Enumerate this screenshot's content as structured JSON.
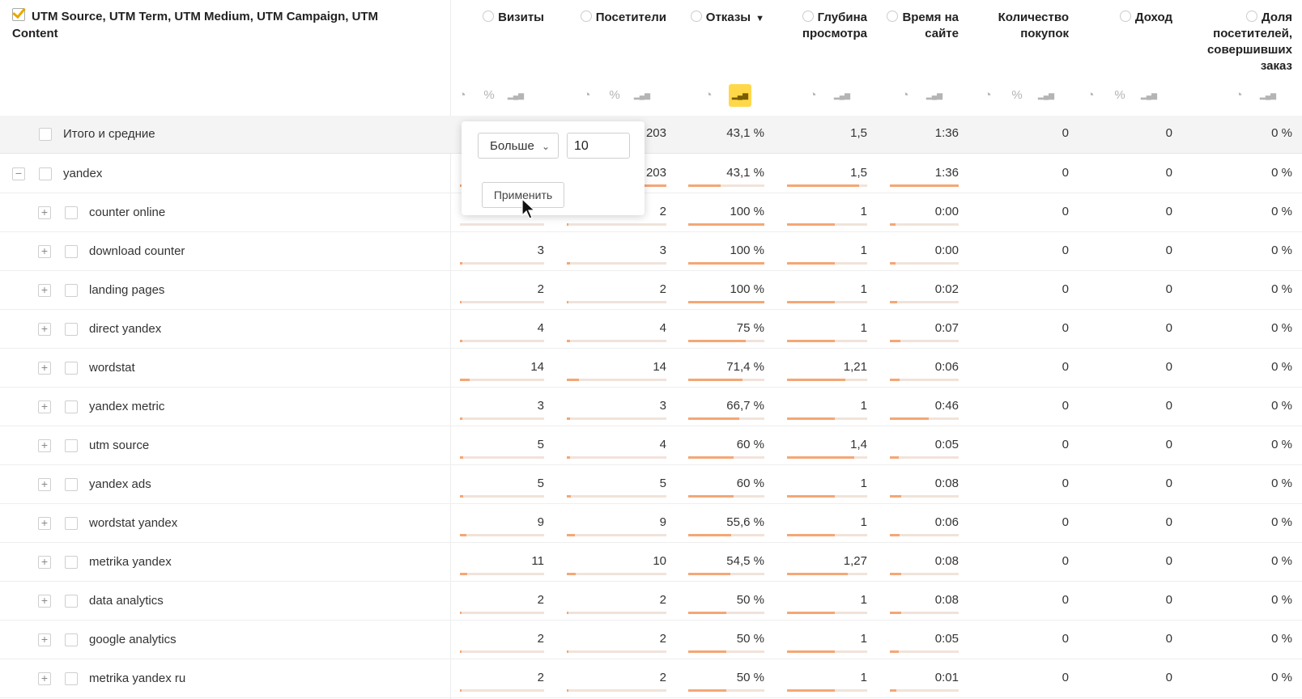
{
  "dimension_header": "UTM Source, UTM Term, UTM Medium, UTM Campaign, UTM Content",
  "columns": [
    {
      "label": "Визиты"
    },
    {
      "label": "Посетители"
    },
    {
      "label": "Отказы",
      "sort": "▼"
    },
    {
      "label": "Глубина просмотра"
    },
    {
      "label": "Время на сайте"
    },
    {
      "label": "Количество покупок"
    },
    {
      "label": "Доход"
    },
    {
      "label": "Доля посетителей, совершивших заказ"
    }
  ],
  "icons": {
    "pie": "pie-chart-icon",
    "percent": "percent-icon",
    "bars": "bar-chart-icon",
    "question": "info-icon"
  },
  "accent_color": "#ffd84a",
  "bar_color": "#f4a775",
  "filter_popup": {
    "operator": "Больше",
    "value": "10",
    "apply_label": "Применить"
  },
  "rows": [
    {
      "label": "Итого и средние",
      "type": "total",
      "visits": "",
      "visitors": "203",
      "bounce": "43,1 %",
      "depth": "1,5",
      "time": "1:36",
      "purchases": "0",
      "revenue": "0",
      "share": "0 %"
    },
    {
      "label": "yandex",
      "type": "group",
      "visits": "",
      "visitors": "203",
      "bounce": "43,1 %",
      "depth": "1,5",
      "time": "1:36",
      "purchases": "0",
      "revenue": "0",
      "share": "0 %"
    },
    {
      "label": "counter online",
      "type": "child",
      "visits": "",
      "visitors": "2",
      "bounce": "100 %",
      "depth": "1",
      "time": "0:00",
      "purchases": "0",
      "revenue": "0",
      "share": "0 %"
    },
    {
      "label": "download counter",
      "type": "child",
      "visits": "3",
      "visitors": "3",
      "bounce": "100 %",
      "depth": "1",
      "time": "0:00",
      "purchases": "0",
      "revenue": "0",
      "share": "0 %"
    },
    {
      "label": "landing pages",
      "type": "child",
      "visits": "2",
      "visitors": "2",
      "bounce": "100 %",
      "depth": "1",
      "time": "0:02",
      "purchases": "0",
      "revenue": "0",
      "share": "0 %"
    },
    {
      "label": "direct yandex",
      "type": "child",
      "visits": "4",
      "visitors": "4",
      "bounce": "75 %",
      "depth": "1",
      "time": "0:07",
      "purchases": "0",
      "revenue": "0",
      "share": "0 %"
    },
    {
      "label": "wordstat",
      "type": "child",
      "visits": "14",
      "visitors": "14",
      "bounce": "71,4 %",
      "depth": "1,21",
      "time": "0:06",
      "purchases": "0",
      "revenue": "0",
      "share": "0 %"
    },
    {
      "label": "yandex metric",
      "type": "child",
      "visits": "3",
      "visitors": "3",
      "bounce": "66,7 %",
      "depth": "1",
      "time": "0:46",
      "purchases": "0",
      "revenue": "0",
      "share": "0 %"
    },
    {
      "label": "utm source",
      "type": "child",
      "visits": "5",
      "visitors": "4",
      "bounce": "60 %",
      "depth": "1,4",
      "time": "0:05",
      "purchases": "0",
      "revenue": "0",
      "share": "0 %"
    },
    {
      "label": "yandex ads",
      "type": "child",
      "visits": "5",
      "visitors": "5",
      "bounce": "60 %",
      "depth": "1",
      "time": "0:08",
      "purchases": "0",
      "revenue": "0",
      "share": "0 %"
    },
    {
      "label": "wordstat yandex",
      "type": "child",
      "visits": "9",
      "visitors": "9",
      "bounce": "55,6 %",
      "depth": "1",
      "time": "0:06",
      "purchases": "0",
      "revenue": "0",
      "share": "0 %"
    },
    {
      "label": "metrika yandex",
      "type": "child",
      "visits": "11",
      "visitors": "10",
      "bounce": "54,5 %",
      "depth": "1,27",
      "time": "0:08",
      "purchases": "0",
      "revenue": "0",
      "share": "0 %"
    },
    {
      "label": "data analytics",
      "type": "child",
      "visits": "2",
      "visitors": "2",
      "bounce": "50 %",
      "depth": "1",
      "time": "0:08",
      "purchases": "0",
      "revenue": "0",
      "share": "0 %"
    },
    {
      "label": "google analytics",
      "type": "child",
      "visits": "2",
      "visitors": "2",
      "bounce": "50 %",
      "depth": "1",
      "time": "0:05",
      "purchases": "0",
      "revenue": "0",
      "share": "0 %"
    },
    {
      "label": "metrika yandex ru",
      "type": "child",
      "visits": "2",
      "visitors": "2",
      "bounce": "50 %",
      "depth": "1",
      "time": "0:01",
      "purchases": "0",
      "revenue": "0",
      "share": "0 %"
    }
  ]
}
